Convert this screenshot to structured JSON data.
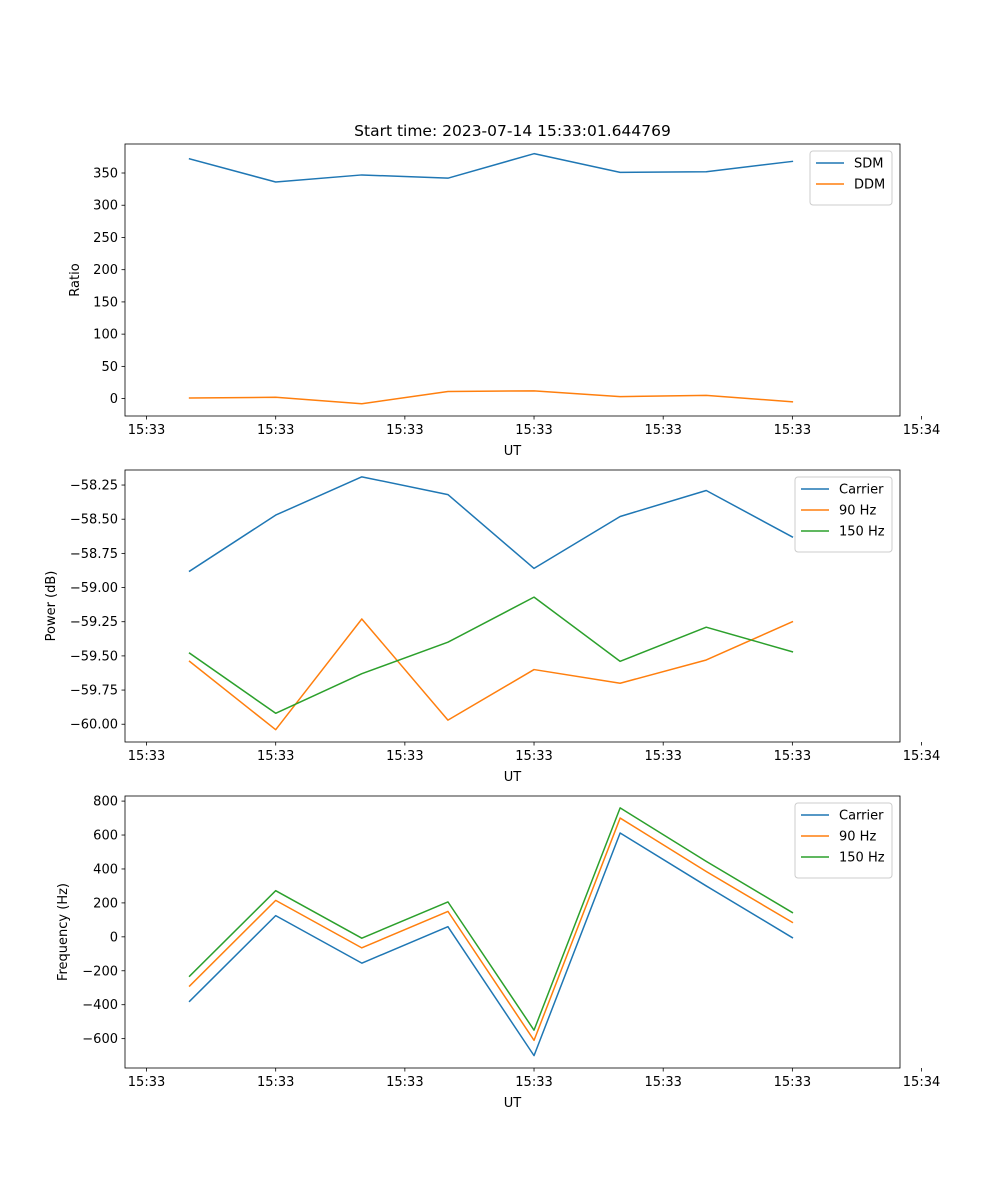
{
  "figure_title": "Start time: 2023-07-14 15:33:01.644769",
  "colors": {
    "blue": "#1f77b4",
    "orange": "#ff7f0e",
    "green": "#2ca02c"
  },
  "chart_data": [
    {
      "type": "line",
      "title": "Start time: 2023-07-14 15:33:01.644769",
      "xlabel": "UT",
      "ylabel": "Ratio",
      "x": [
        0,
        1,
        2,
        3,
        4,
        5,
        6,
        7
      ],
      "xlim": [
        -0.75,
        8.25
      ],
      "xtick_positions": [
        -0.5,
        1,
        2.5,
        4,
        5.5,
        7,
        8.5
      ],
      "xtick_labels": [
        "15:33",
        "15:33",
        "15:33",
        "15:33",
        "15:33",
        "15:33",
        "15:34"
      ],
      "ylim": [
        -27,
        395
      ],
      "yticks": [
        0,
        50,
        100,
        150,
        200,
        250,
        300,
        350
      ],
      "ytick_labels": [
        "0",
        "50",
        "100",
        "150",
        "200",
        "250",
        "300",
        "350"
      ],
      "legend_position": "top-right",
      "series": [
        {
          "name": "SDM",
          "color": "#1f77b4",
          "values": [
            372,
            336,
            347,
            342,
            380,
            351,
            352,
            368
          ]
        },
        {
          "name": "DDM",
          "color": "#ff7f0e",
          "values": [
            1,
            2,
            -8,
            11,
            12,
            3,
            5,
            -5
          ]
        }
      ]
    },
    {
      "type": "line",
      "xlabel": "UT",
      "ylabel": "Power (dB)",
      "x": [
        0,
        1,
        2,
        3,
        4,
        5,
        6,
        7
      ],
      "xlim": [
        -0.75,
        8.25
      ],
      "xtick_positions": [
        -0.5,
        1,
        2.5,
        4,
        5.5,
        7,
        8.5
      ],
      "xtick_labels": [
        "15:33",
        "15:33",
        "15:33",
        "15:33",
        "15:33",
        "15:33",
        "15:34"
      ],
      "ylim": [
        -60.13,
        -58.14
      ],
      "yticks": [
        -60.0,
        -59.75,
        -59.5,
        -59.25,
        -59.0,
        -58.75,
        -58.5,
        -58.25
      ],
      "ytick_labels": [
        "−60.00",
        "−59.75",
        "−59.50",
        "−59.25",
        "−59.00",
        "−58.75",
        "−58.50",
        "−58.25"
      ],
      "legend_position": "top-right",
      "series": [
        {
          "name": "Carrier",
          "color": "#1f77b4",
          "values": [
            -58.88,
            -58.47,
            -58.19,
            -58.32,
            -58.86,
            -58.48,
            -58.29,
            -58.63
          ]
        },
        {
          "name": "90 Hz",
          "color": "#ff7f0e",
          "values": [
            -59.54,
            -60.04,
            -59.23,
            -59.97,
            -59.6,
            -59.7,
            -59.53,
            -59.25
          ]
        },
        {
          "name": "150 Hz",
          "color": "#2ca02c",
          "values": [
            -59.48,
            -59.92,
            -59.63,
            -59.4,
            -59.07,
            -59.54,
            -59.29,
            -59.47
          ]
        }
      ]
    },
    {
      "type": "line",
      "xlabel": "UT",
      "ylabel": "Frequency (Hz)",
      "x": [
        0,
        1,
        2,
        3,
        4,
        5,
        6,
        7
      ],
      "xlim": [
        -0.75,
        8.25
      ],
      "xtick_positions": [
        -0.5,
        1,
        2.5,
        4,
        5.5,
        7,
        8.5
      ],
      "xtick_labels": [
        "15:33",
        "15:33",
        "15:33",
        "15:33",
        "15:33",
        "15:33",
        "15:34"
      ],
      "ylim": [
        -773,
        830
      ],
      "yticks": [
        -600,
        -400,
        -200,
        0,
        200,
        400,
        600,
        800
      ],
      "ytick_labels": [
        "−600",
        "−400",
        "−200",
        "0",
        "200",
        "400",
        "600",
        "800"
      ],
      "legend_position": "top-right",
      "series": [
        {
          "name": "Carrier",
          "color": "#1f77b4",
          "values": [
            -380,
            125,
            -155,
            60,
            -700,
            612,
            300,
            -5
          ]
        },
        {
          "name": "90 Hz",
          "color": "#ff7f0e",
          "values": [
            -290,
            215,
            -65,
            150,
            -610,
            700,
            385,
            85
          ]
        },
        {
          "name": "150 Hz",
          "color": "#2ca02c",
          "values": [
            -232,
            272,
            -8,
            206,
            -550,
            760,
            445,
            143
          ]
        }
      ]
    }
  ]
}
